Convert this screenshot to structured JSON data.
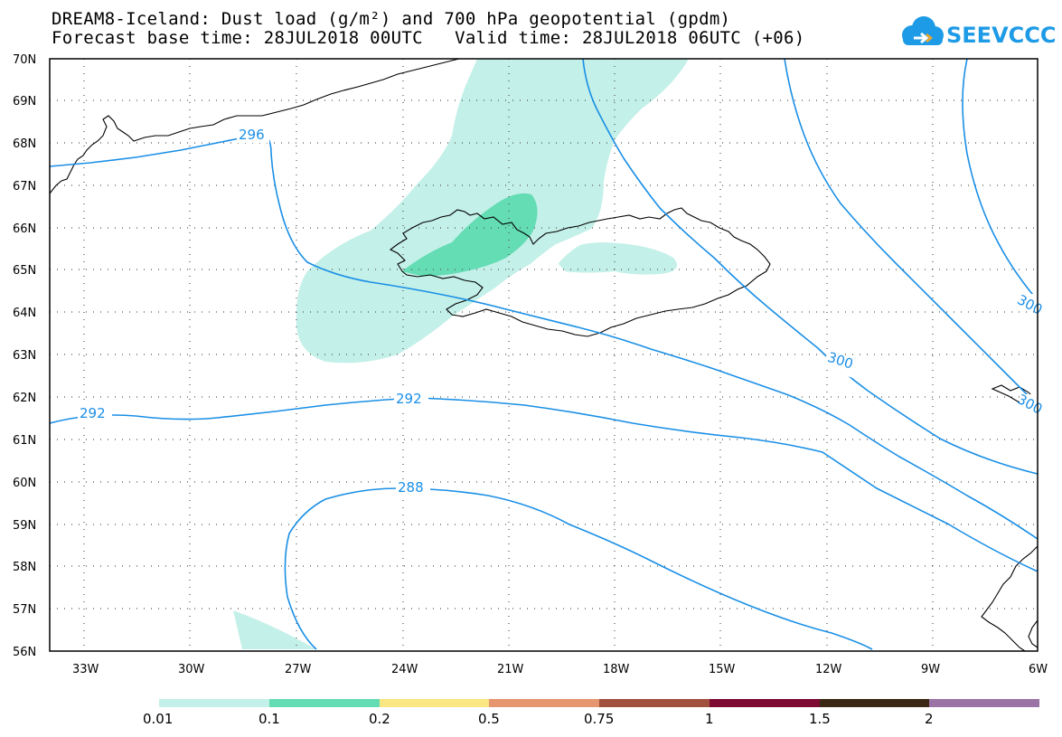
{
  "title": {
    "line1": "DREAM8-Iceland: Dust load (g/m²) and 700 hPa geopotential (gpdm)",
    "line2": "Forecast base time: 28JUL2018 00UTC   Valid time: 28JUL2018 06UTC (+06)"
  },
  "logo": {
    "text": "SEEVCCC",
    "icon": "cloud-icon"
  },
  "colors": {
    "contour": "#1a8fe6",
    "coast": "#000000",
    "dust_levels": [
      "#c3f0e8",
      "#64dcb4",
      "#fae682",
      "#e6966e",
      "#a0503c",
      "#7d0a32",
      "#3c2814",
      "#9b73a5"
    ]
  },
  "map": {
    "latitude_labels": [
      "56N",
      "57N",
      "58N",
      "59N",
      "60N",
      "61N",
      "62N",
      "63N",
      "64N",
      "65N",
      "66N",
      "67N",
      "68N",
      "69N",
      "70N"
    ],
    "longitude_labels": [
      "33W",
      "30W",
      "27W",
      "24W",
      "21W",
      "18W",
      "15W",
      "12W",
      "9W",
      "6W"
    ],
    "contour_labels": [
      "296",
      "300",
      "300",
      "300",
      "292",
      "292",
      "288"
    ],
    "grid": "dotted"
  },
  "legend": {
    "ticks": [
      "0.01",
      "0.1",
      "0.2",
      "0.5",
      "0.75",
      "1",
      "1.5",
      "2"
    ]
  }
}
